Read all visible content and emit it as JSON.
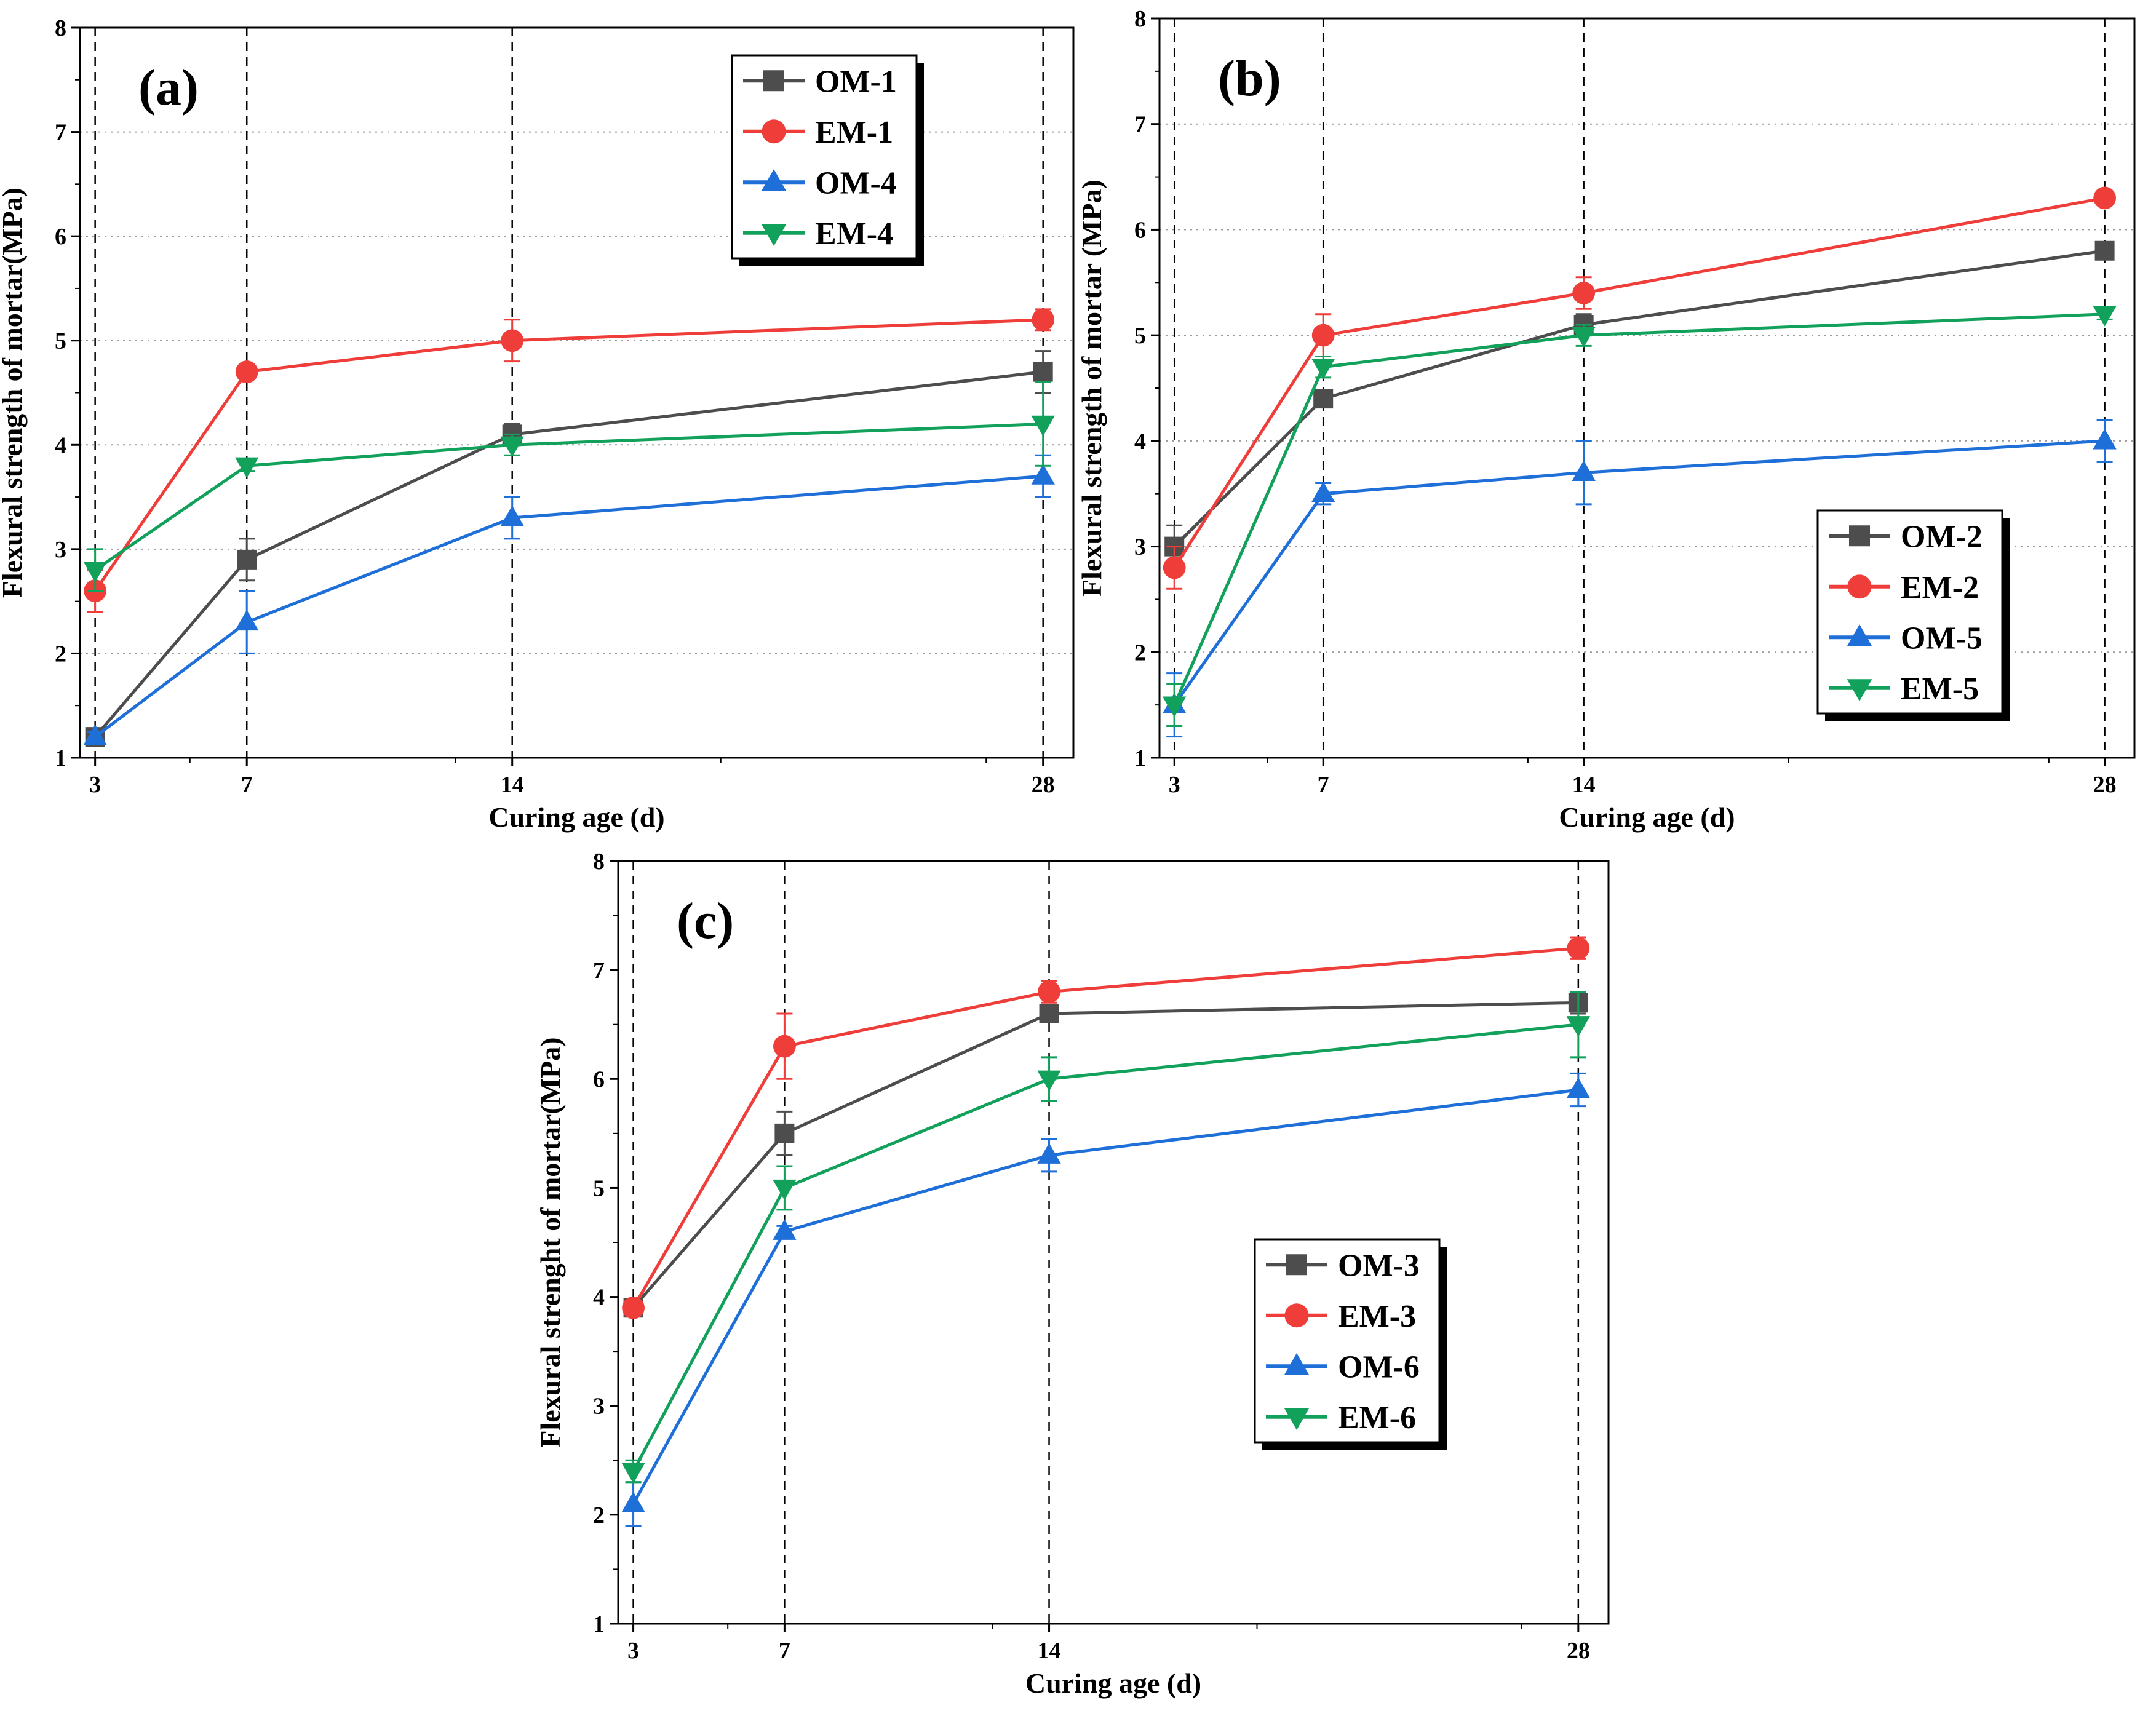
{
  "figure": {
    "background": "#ffffff"
  },
  "colors": {
    "OM-1": "#4d4d4d",
    "OM-2": "#4d4d4d",
    "OM-3": "#4d4d4d",
    "EM-1": "#ef3e3a",
    "EM-2": "#ef3e3a",
    "EM-3": "#ef3e3a",
    "OM-4": "#1f6fd8",
    "OM-5": "#1f6fd8",
    "OM-6": "#1f6fd8",
    "EM-4": "#12a15a",
    "EM-5": "#12a15a",
    "EM-6": "#12a15a"
  },
  "chart_data": [
    {
      "type": "line",
      "panel_label": "(a)",
      "xlabel": "Curing age (d)",
      "ylabel": "Flexural strength of mortar(MPa)",
      "x": [
        3,
        7,
        14,
        28
      ],
      "x_ticks": [
        3,
        7,
        14,
        28
      ],
      "xlim": [
        2.6,
        28.8
      ],
      "ylim": [
        1,
        8
      ],
      "y_ticks": [
        1,
        2,
        3,
        4,
        5,
        6,
        7,
        8
      ],
      "vertical_dashed_lines_at": [
        3,
        7,
        14,
        28
      ],
      "horizontal_dotted_grid": true,
      "legend_position": "top-right",
      "series": [
        {
          "name": "OM-1",
          "marker": "square",
          "values": [
            1.2,
            2.9,
            4.1,
            4.7
          ],
          "errors": [
            0.05,
            0.2,
            0.1,
            0.2
          ]
        },
        {
          "name": "EM-1",
          "marker": "circle",
          "values": [
            2.6,
            4.7,
            5.0,
            5.2
          ],
          "errors": [
            0.2,
            0.05,
            0.2,
            0.1
          ]
        },
        {
          "name": "OM-4",
          "marker": "triangle-up",
          "values": [
            1.2,
            2.3,
            3.3,
            3.7
          ],
          "errors": [
            0.05,
            0.3,
            0.2,
            0.2
          ]
        },
        {
          "name": "EM-4",
          "marker": "triangle-down",
          "values": [
            2.8,
            3.8,
            4.0,
            4.2
          ],
          "errors": [
            0.2,
            0.05,
            0.1,
            0.4
          ]
        }
      ]
    },
    {
      "type": "line",
      "panel_label": "(b)",
      "xlabel": "Curing age (d)",
      "ylabel": "Flexural strength of mortar (MPa)",
      "x": [
        3,
        7,
        14,
        28
      ],
      "x_ticks": [
        3,
        7,
        14,
        28
      ],
      "xlim": [
        2.6,
        28.8
      ],
      "ylim": [
        1,
        8
      ],
      "y_ticks": [
        1,
        2,
        3,
        4,
        5,
        6,
        7,
        8
      ],
      "vertical_dashed_lines_at": [
        3,
        7,
        14,
        28
      ],
      "horizontal_dotted_grid": true,
      "legend_position": "bottom-right",
      "series": [
        {
          "name": "OM-2",
          "marker": "square",
          "values": [
            3.0,
            4.4,
            5.1,
            5.8
          ],
          "errors": [
            0.2,
            0.05,
            0.1,
            0.05
          ]
        },
        {
          "name": "EM-2",
          "marker": "circle",
          "values": [
            2.8,
            5.0,
            5.4,
            6.3
          ],
          "errors": [
            0.2,
            0.2,
            0.15,
            0.05
          ]
        },
        {
          "name": "OM-5",
          "marker": "triangle-up",
          "values": [
            1.5,
            3.5,
            3.7,
            4.0
          ],
          "errors": [
            0.3,
            0.1,
            0.3,
            0.2
          ]
        },
        {
          "name": "EM-5",
          "marker": "triangle-down",
          "values": [
            1.5,
            4.7,
            5.0,
            5.2
          ],
          "errors": [
            0.2,
            0.1,
            0.1,
            0.05
          ]
        }
      ]
    },
    {
      "type": "line",
      "panel_label": "(c)",
      "xlabel": "Curing age (d)",
      "ylabel": "Flexural strenght of mortar(MPa)",
      "x": [
        3,
        7,
        14,
        28
      ],
      "x_ticks": [
        3,
        7,
        14,
        28
      ],
      "xlim": [
        2.6,
        28.8
      ],
      "ylim": [
        1,
        8
      ],
      "y_ticks": [
        1,
        2,
        3,
        4,
        5,
        6,
        7,
        8
      ],
      "vertical_dashed_lines_at": [
        3,
        7,
        14,
        28
      ],
      "horizontal_dotted_grid": false,
      "legend_position": "bottom-right",
      "series": [
        {
          "name": "OM-3",
          "marker": "square",
          "values": [
            3.9,
            5.5,
            6.6,
            6.7
          ],
          "errors": [
            0.05,
            0.2,
            0.05,
            0.1
          ]
        },
        {
          "name": "EM-3",
          "marker": "circle",
          "values": [
            3.9,
            6.3,
            6.8,
            7.2
          ],
          "errors": [
            0.05,
            0.3,
            0.1,
            0.1
          ]
        },
        {
          "name": "OM-6",
          "marker": "triangle-up",
          "values": [
            2.1,
            4.6,
            5.3,
            5.9
          ],
          "errors": [
            0.2,
            0.05,
            0.15,
            0.15
          ]
        },
        {
          "name": "EM-6",
          "marker": "triangle-down",
          "values": [
            2.4,
            5.0,
            6.0,
            6.5
          ],
          "errors": [
            0.1,
            0.2,
            0.2,
            0.3
          ]
        }
      ]
    }
  ]
}
